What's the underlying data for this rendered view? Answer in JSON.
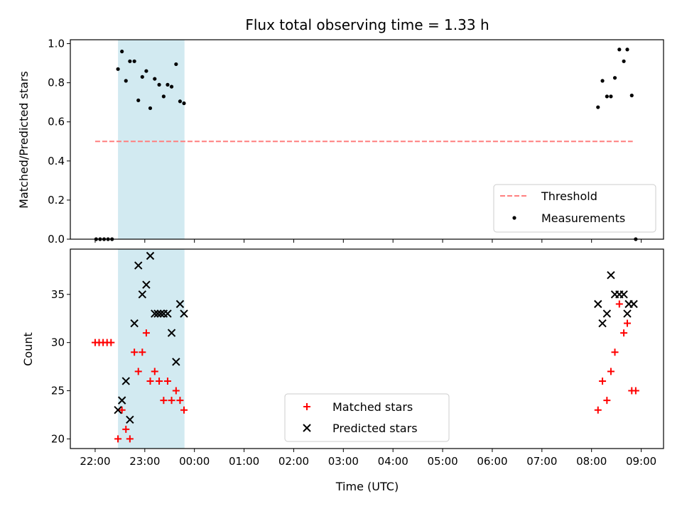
{
  "figure_title": "Flux total observing time = 1.33 h",
  "x_tick_labels": [
    "22:00",
    "23:00",
    "00:00",
    "01:00",
    "02:00",
    "03:00",
    "04:00",
    "05:00",
    "06:00",
    "07:00",
    "08:00",
    "09:00"
  ],
  "chart_data": [
    {
      "type": "scatter",
      "xlabel": "Time (UTC)",
      "ylabel": "Matched/Predicted stars",
      "x_unit": "hours since 22:00 UTC",
      "xlim": [
        -0.5,
        11.45
      ],
      "ylim": [
        0,
        1.02
      ],
      "y_ticks": [
        0.0,
        0.2,
        0.4,
        0.6,
        0.8,
        1.0
      ],
      "y_tick_labels": [
        "0.0",
        "0.2",
        "0.4",
        "0.6",
        "0.8",
        "1.0"
      ],
      "shaded_span": [
        0.46,
        1.8
      ],
      "shaded_color": "#add8e6",
      "legend_position": "lower right",
      "threshold": {
        "name": "Threshold",
        "y": 0.5,
        "x": [
          0.0,
          10.83
        ],
        "color": "#ff7f7f",
        "style": "dashed"
      },
      "series": [
        {
          "name": "Measurements",
          "marker": "dot",
          "color": "#000000",
          "points": [
            [
              0.02,
              0.0
            ],
            [
              0.1,
              0.0
            ],
            [
              0.18,
              0.0
            ],
            [
              0.26,
              0.0
            ],
            [
              0.34,
              0.0
            ],
            [
              0.46,
              0.87
            ],
            [
              0.54,
              0.96
            ],
            [
              0.62,
              0.81
            ],
            [
              0.7,
              0.91
            ],
            [
              0.79,
              0.91
            ],
            [
              0.87,
              0.71
            ],
            [
              0.95,
              0.83
            ],
            [
              1.03,
              0.86
            ],
            [
              1.11,
              0.67
            ],
            [
              1.2,
              0.82
            ],
            [
              1.29,
              0.79
            ],
            [
              1.38,
              0.73
            ],
            [
              1.46,
              0.79
            ],
            [
              1.54,
              0.78
            ],
            [
              1.63,
              0.895
            ],
            [
              1.71,
              0.705
            ],
            [
              1.79,
              0.695
            ],
            [
              10.13,
              0.675
            ],
            [
              10.22,
              0.81
            ],
            [
              10.31,
              0.73
            ],
            [
              10.39,
              0.73
            ],
            [
              10.47,
              0.825
            ],
            [
              10.56,
              0.97
            ],
            [
              10.65,
              0.91
            ],
            [
              10.72,
              0.97
            ],
            [
              10.81,
              0.735
            ],
            [
              10.89,
              0.0
            ]
          ]
        }
      ]
    },
    {
      "type": "scatter",
      "xlabel": "Time (UTC)",
      "ylabel": "Count",
      "x_unit": "hours since 22:00 UTC",
      "xlim": [
        -0.5,
        11.45
      ],
      "ylim": [
        19,
        39.7
      ],
      "y_ticks": [
        20,
        25,
        30,
        35
      ],
      "y_tick_labels": [
        "20",
        "25",
        "30",
        "35"
      ],
      "shaded_span": [
        0.46,
        1.8
      ],
      "shaded_color": "#add8e6",
      "legend_position": "lower center",
      "series": [
        {
          "name": "Matched stars",
          "marker": "plus",
          "color": "#ff0000",
          "points": [
            [
              0.0,
              30
            ],
            [
              0.08,
              30
            ],
            [
              0.16,
              30
            ],
            [
              0.24,
              30
            ],
            [
              0.32,
              30
            ],
            [
              0.46,
              20
            ],
            [
              0.54,
              23
            ],
            [
              0.62,
              21
            ],
            [
              0.7,
              20
            ],
            [
              0.79,
              29
            ],
            [
              0.87,
              27
            ],
            [
              0.95,
              29
            ],
            [
              1.03,
              31
            ],
            [
              1.11,
              26
            ],
            [
              1.2,
              27
            ],
            [
              1.29,
              26
            ],
            [
              1.38,
              24
            ],
            [
              1.46,
              26
            ],
            [
              1.54,
              24
            ],
            [
              1.63,
              25
            ],
            [
              1.71,
              24
            ],
            [
              1.79,
              23
            ],
            [
              10.13,
              23
            ],
            [
              10.22,
              26
            ],
            [
              10.31,
              24
            ],
            [
              10.39,
              27
            ],
            [
              10.47,
              29
            ],
            [
              10.56,
              34
            ],
            [
              10.65,
              31
            ],
            [
              10.72,
              32
            ],
            [
              10.81,
              25
            ],
            [
              10.89,
              25
            ]
          ]
        },
        {
          "name": "Predicted stars",
          "marker": "x",
          "color": "#000000",
          "points": [
            [
              0.46,
              23
            ],
            [
              0.54,
              24
            ],
            [
              0.62,
              26
            ],
            [
              0.7,
              22
            ],
            [
              0.79,
              32
            ],
            [
              0.87,
              38
            ],
            [
              0.95,
              35
            ],
            [
              1.03,
              36
            ],
            [
              1.11,
              39
            ],
            [
              1.2,
              33
            ],
            [
              1.26,
              33
            ],
            [
              1.32,
              33
            ],
            [
              1.38,
              33
            ],
            [
              1.46,
              33
            ],
            [
              1.54,
              31
            ],
            [
              1.63,
              28
            ],
            [
              1.71,
              34
            ],
            [
              1.79,
              33
            ],
            [
              10.13,
              34
            ],
            [
              10.22,
              32
            ],
            [
              10.31,
              33
            ],
            [
              10.39,
              37
            ],
            [
              10.47,
              35
            ],
            [
              10.56,
              35
            ],
            [
              10.65,
              35
            ],
            [
              10.72,
              33
            ],
            [
              10.75,
              34
            ],
            [
              10.85,
              34
            ]
          ]
        }
      ]
    }
  ]
}
